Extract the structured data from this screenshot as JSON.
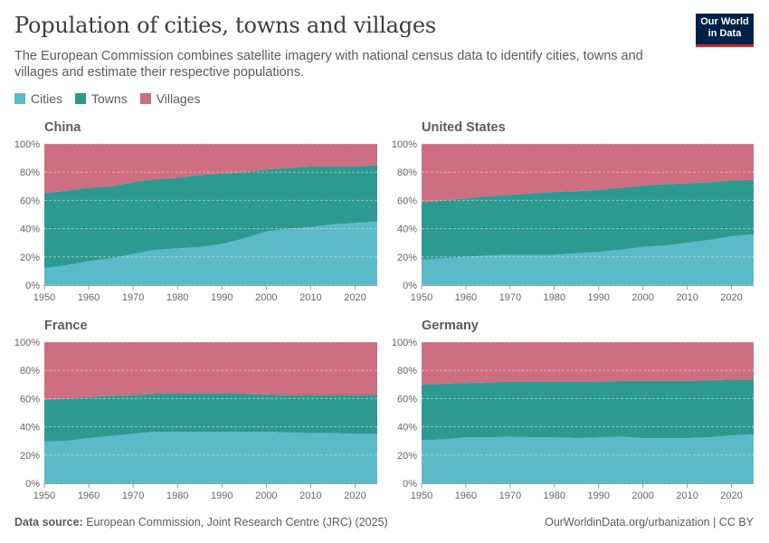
{
  "header": {
    "title": "Population of cities, towns and villages",
    "subtitle": "The European Commission combines satellite imagery with national census data to identify cities, towns and villages and estimate their respective populations.",
    "logo_line1": "Our World",
    "logo_line2": "in Data"
  },
  "colors": {
    "Cities": "#5bbac7",
    "Towns": "#2d9a92",
    "Villages": "#cd6e81"
  },
  "legend": [
    {
      "label": "Cities",
      "color": "#5bbac7"
    },
    {
      "label": "Towns",
      "color": "#2d9a92"
    },
    {
      "label": "Villages",
      "color": "#cd6e81"
    }
  ],
  "footer": {
    "source_label": "Data source:",
    "source_text": "European Commission, Joint Research Centre (JRC) (2025)",
    "right_text": "OurWorldinData.org/urbanization | CC BY"
  },
  "chart_data": [
    {
      "type": "area",
      "title": "China",
      "x": [
        1950,
        1955,
        1960,
        1965,
        1970,
        1975,
        1980,
        1985,
        1990,
        1995,
        2000,
        2005,
        2010,
        2015,
        2020,
        2025
      ],
      "ylim": [
        0,
        100
      ],
      "yticks": [
        "0%",
        "20%",
        "40%",
        "60%",
        "80%",
        "100%"
      ],
      "xticks": [
        1950,
        1960,
        1970,
        1980,
        1990,
        2000,
        2010,
        2020
      ],
      "series": [
        {
          "name": "Cities",
          "values": [
            12,
            14,
            17,
            19,
            22,
            25,
            26,
            27,
            29,
            33,
            38,
            40,
            41,
            43,
            44,
            45
          ]
        },
        {
          "name": "Towns",
          "values": [
            53,
            53,
            52,
            51,
            51,
            50,
            50,
            51,
            50,
            47,
            44,
            43,
            43,
            41,
            40,
            40
          ]
        },
        {
          "name": "Villages",
          "values": [
            35,
            33,
            31,
            30,
            27,
            25,
            24,
            22,
            21,
            20,
            18,
            17,
            16,
            16,
            16,
            15
          ]
        }
      ]
    },
    {
      "type": "area",
      "title": "United States",
      "x": [
        1950,
        1955,
        1960,
        1965,
        1970,
        1975,
        1980,
        1985,
        1990,
        1995,
        2000,
        2005,
        2010,
        2015,
        2020,
        2025
      ],
      "ylim": [
        0,
        100
      ],
      "yticks": [
        "0%",
        "20%",
        "40%",
        "60%",
        "80%",
        "100%"
      ],
      "xticks": [
        1950,
        1960,
        1970,
        1980,
        1990,
        2000,
        2010,
        2020
      ],
      "series": [
        {
          "name": "Cities",
          "values": [
            18,
            19,
            20,
            21,
            21.5,
            21.5,
            21.5,
            22.5,
            23.5,
            25,
            27,
            28,
            30,
            32,
            34.5,
            36
          ]
        },
        {
          "name": "Towns",
          "values": [
            40.5,
            41,
            41.5,
            42,
            42.5,
            43.5,
            44.5,
            44,
            44,
            44,
            43.5,
            43.5,
            42,
            41,
            39.5,
            38.5
          ]
        },
        {
          "name": "Villages",
          "values": [
            41.5,
            40,
            38.5,
            37,
            36,
            35,
            34,
            33.5,
            32.5,
            31,
            29.5,
            28.5,
            28,
            27,
            26,
            25.5
          ]
        }
      ]
    },
    {
      "type": "area",
      "title": "France",
      "x": [
        1950,
        1955,
        1960,
        1965,
        1970,
        1975,
        1980,
        1985,
        1990,
        1995,
        2000,
        2005,
        2010,
        2015,
        2020,
        2025
      ],
      "ylim": [
        0,
        100
      ],
      "yticks": [
        "0%",
        "20%",
        "40%",
        "60%",
        "80%",
        "100%"
      ],
      "xticks": [
        1950,
        1960,
        1970,
        1980,
        1990,
        2000,
        2010,
        2020
      ],
      "series": [
        {
          "name": "Cities",
          "values": [
            29.5,
            30,
            32,
            33.5,
            35,
            36.5,
            36.5,
            36.5,
            36.5,
            36.5,
            36.5,
            36,
            35.5,
            35.5,
            35,
            35
          ]
        },
        {
          "name": "Towns",
          "values": [
            29.5,
            30,
            29,
            28.5,
            27.5,
            27,
            27,
            27,
            27,
            27,
            26.5,
            26.5,
            27,
            27,
            27.5,
            27.5
          ]
        },
        {
          "name": "Villages",
          "values": [
            41,
            40,
            39,
            38,
            37.5,
            36.5,
            36.5,
            36.5,
            36.5,
            36.5,
            37,
            37.5,
            37.5,
            37.5,
            37.5,
            37.5
          ]
        }
      ]
    },
    {
      "type": "area",
      "title": "Germany",
      "x": [
        1950,
        1955,
        1960,
        1965,
        1970,
        1975,
        1980,
        1985,
        1990,
        1995,
        2000,
        2005,
        2010,
        2015,
        2020,
        2025
      ],
      "ylim": [
        0,
        100
      ],
      "yticks": [
        "0%",
        "20%",
        "40%",
        "60%",
        "80%",
        "100%"
      ],
      "xticks": [
        1950,
        1960,
        1970,
        1980,
        1990,
        2000,
        2010,
        2020
      ],
      "series": [
        {
          "name": "Cities",
          "values": [
            30.5,
            31,
            32.5,
            32.5,
            33,
            32.5,
            32.5,
            32,
            32.5,
            33,
            32,
            32,
            32,
            32.5,
            34,
            34.5
          ]
        },
        {
          "name": "Towns",
          "values": [
            39.5,
            39.5,
            38.5,
            39,
            39,
            39.5,
            39.5,
            40,
            39.5,
            39.5,
            40.5,
            40.5,
            40.5,
            40.5,
            39.5,
            39
          ]
        },
        {
          "name": "Villages",
          "values": [
            30,
            29.5,
            29,
            28.5,
            28,
            28,
            28,
            28,
            28,
            27.5,
            27.5,
            27.5,
            27.5,
            27,
            26.5,
            26.5
          ]
        }
      ]
    }
  ]
}
